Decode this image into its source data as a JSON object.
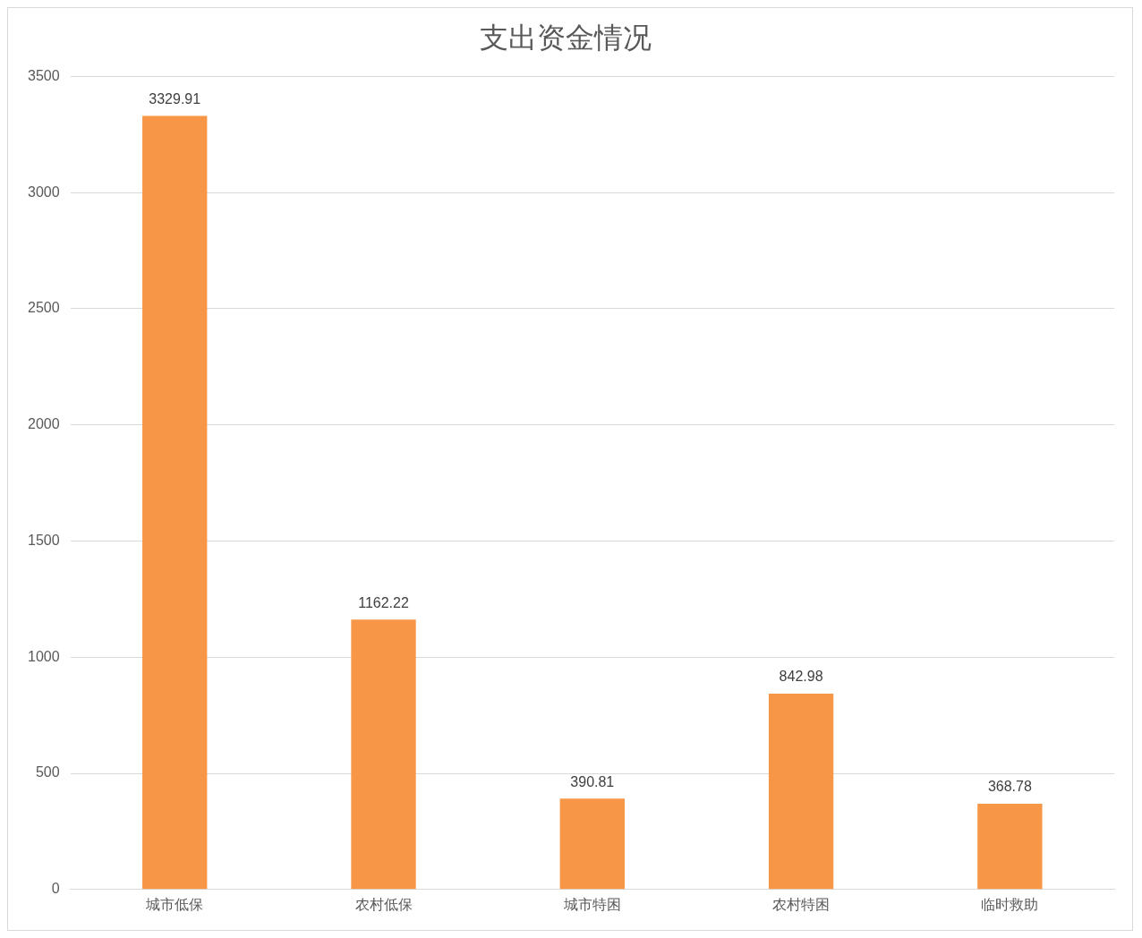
{
  "chart_data": {
    "type": "bar",
    "title": "支出资金情况",
    "categories": [
      "城市低保",
      "农村低保",
      "城市特困",
      "农村特困",
      "临时救助"
    ],
    "values": [
      3329.91,
      1162.22,
      390.81,
      842.98,
      368.78
    ],
    "color": "#f79646",
    "ylim": [
      0,
      3500
    ],
    "yticks": [
      0,
      500,
      1000,
      1500,
      2000,
      2500,
      3000,
      3500
    ],
    "grid": "y",
    "data_labels": true,
    "legend": false
  }
}
